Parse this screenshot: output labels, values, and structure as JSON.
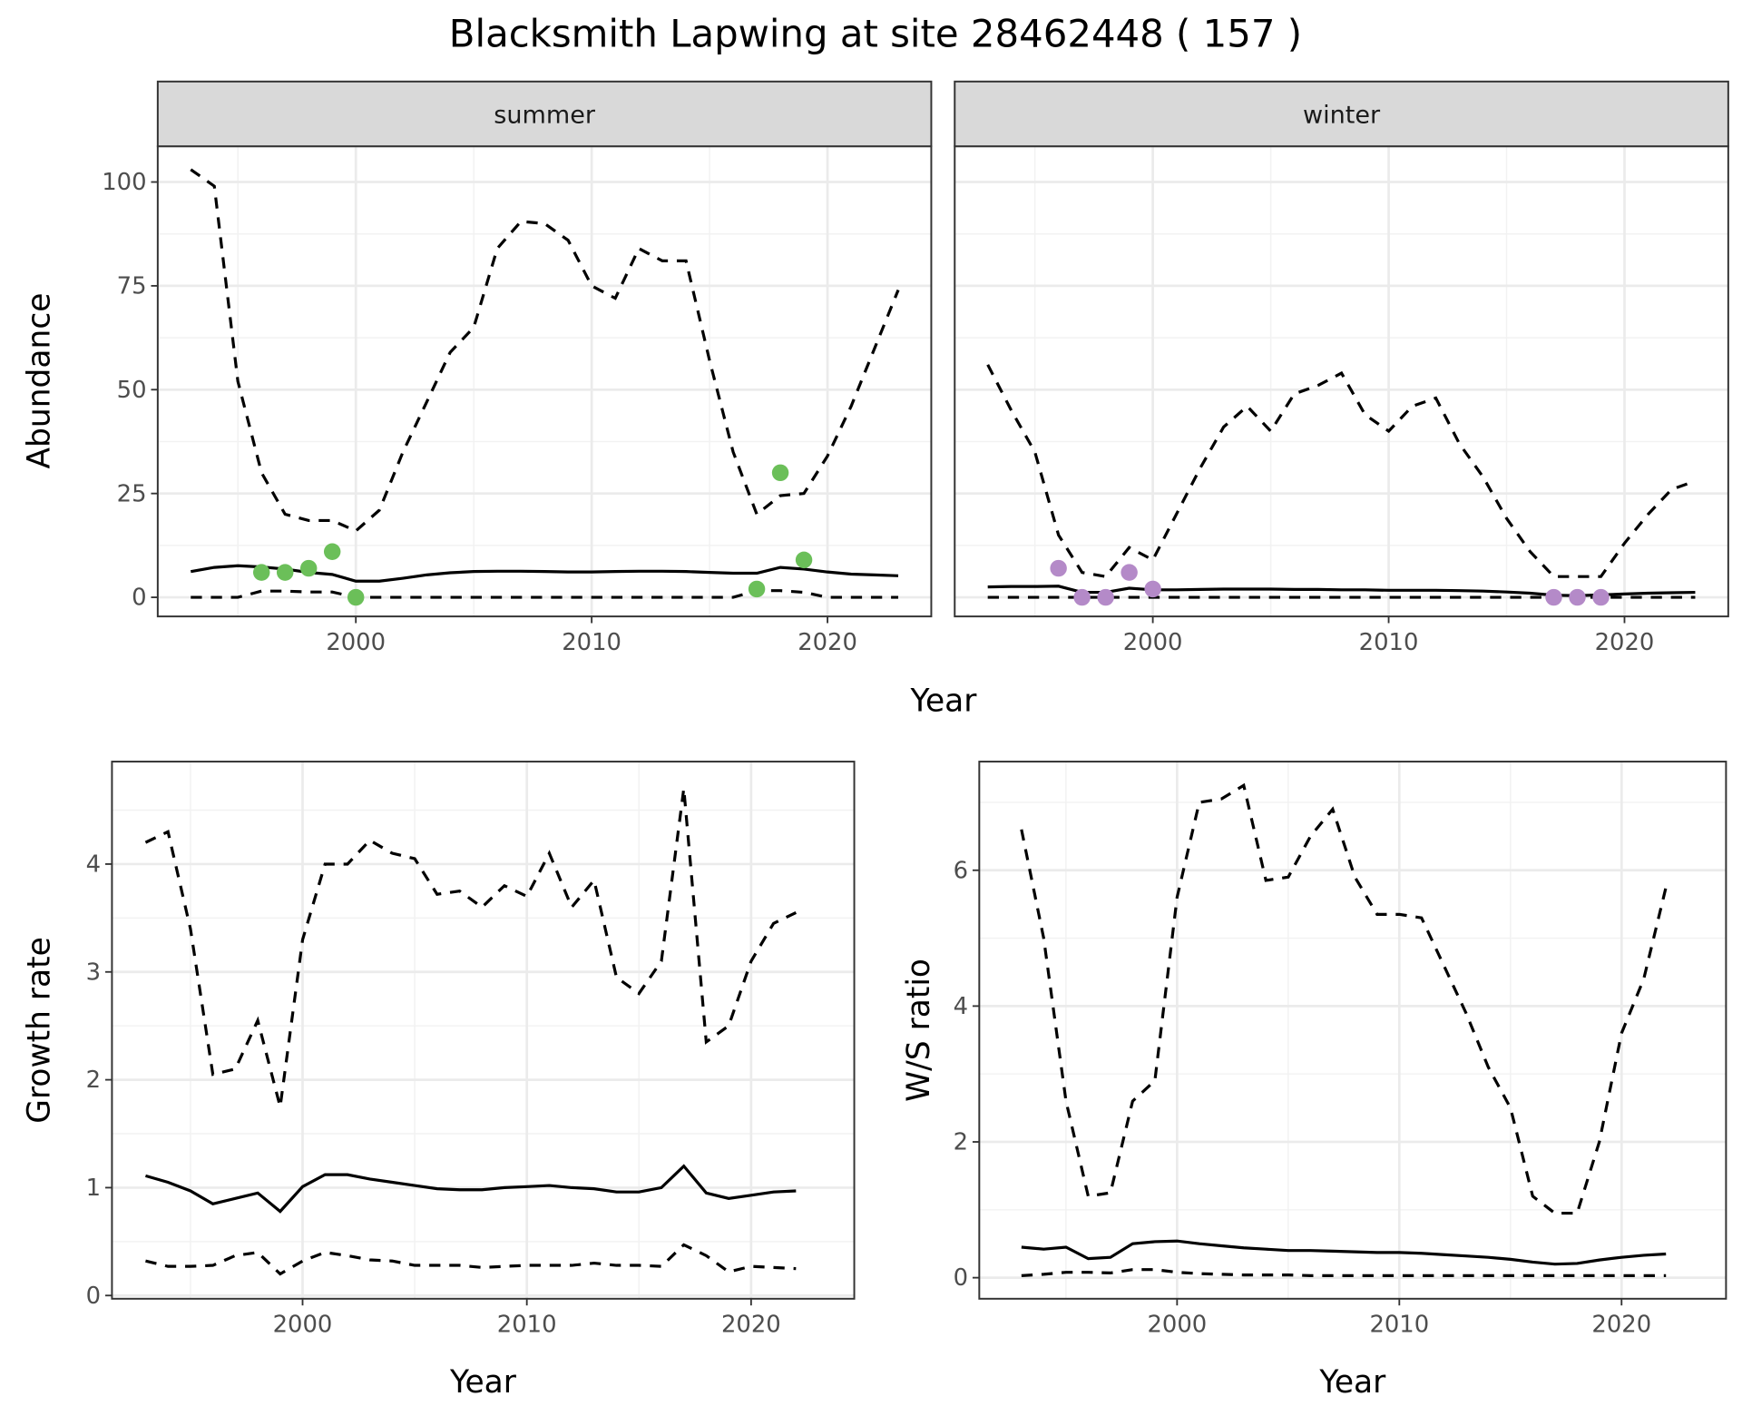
{
  "title": "Blacksmith Lapwing at site 28462448 ( 157 )",
  "chart_data": [
    {
      "type": "line",
      "facet": "summer",
      "xlabel": "Year",
      "ylabel": "Abundance",
      "xlim": [
        1991.6,
        2024.4
      ],
      "ylim": [
        -4.6,
        108.6
      ],
      "xticks": [
        2000,
        2010,
        2020
      ],
      "yticks": [
        0,
        25,
        50,
        75,
        100
      ],
      "x": [
        1993,
        1994,
        1995,
        1996,
        1997,
        1998,
        1999,
        2000,
        2001,
        2002,
        2003,
        2004,
        2005,
        2006,
        2007,
        2008,
        2009,
        2010,
        2011,
        2012,
        2013,
        2014,
        2015,
        2016,
        2017,
        2018,
        2019,
        2020,
        2021,
        2022,
        2023
      ],
      "series": [
        {
          "name": "upper",
          "style": "dashed",
          "values": [
            103,
            99,
            52,
            30,
            20,
            18.5,
            18.5,
            16,
            21,
            35,
            47,
            59,
            65,
            84,
            90.5,
            90,
            86,
            75,
            72,
            84,
            81,
            81,
            57,
            35,
            20,
            24.5,
            25,
            34,
            46,
            60,
            74
          ]
        },
        {
          "name": "estimate",
          "style": "solid",
          "values": [
            6.2,
            7.2,
            7.6,
            7.3,
            6.8,
            6,
            5.5,
            3.9,
            3.9,
            4.6,
            5.4,
            5.9,
            6.2,
            6.3,
            6.3,
            6.2,
            6.1,
            6.1,
            6.2,
            6.3,
            6.3,
            6.2,
            6,
            5.8,
            5.8,
            7.2,
            6.8,
            6.1,
            5.6,
            5.4,
            5.2
          ]
        },
        {
          "name": "lower",
          "style": "dashed",
          "values": [
            0,
            0,
            0,
            1.5,
            1.5,
            1.3,
            1.3,
            0,
            0,
            0,
            0,
            0,
            0,
            0,
            0,
            0,
            0,
            0,
            0,
            0,
            0,
            0,
            0,
            0,
            1.6,
            1.6,
            1.2,
            0,
            0,
            0,
            0
          ]
        }
      ],
      "points": {
        "color": "#6bbf59",
        "x": [
          1996,
          1997,
          1998,
          1999,
          2000,
          2017,
          2018,
          2019
        ],
        "y": [
          6,
          6,
          7,
          11,
          0,
          2,
          30,
          9
        ]
      }
    },
    {
      "type": "line",
      "facet": "winter",
      "xlabel": "Year",
      "ylabel": "Abundance",
      "xlim": [
        1991.6,
        2024.4
      ],
      "ylim": [
        -4.6,
        108.6
      ],
      "xticks": [
        2000,
        2010,
        2020
      ],
      "yticks": [
        0,
        25,
        50,
        75,
        100
      ],
      "x": [
        1993,
        1994,
        1995,
        1996,
        1997,
        1998,
        1999,
        2000,
        2001,
        2002,
        2003,
        2004,
        2005,
        2006,
        2007,
        2008,
        2009,
        2010,
        2011,
        2012,
        2013,
        2014,
        2015,
        2016,
        2017,
        2018,
        2019,
        2020,
        2021,
        2022,
        2023
      ],
      "series": [
        {
          "name": "upper",
          "style": "dashed",
          "values": [
            56,
            45,
            35,
            15,
            6,
            5,
            12,
            9,
            20,
            31,
            41,
            46,
            40,
            49,
            51,
            54,
            44,
            40,
            46,
            48,
            37,
            29,
            19,
            11,
            5,
            5,
            5,
            13,
            20,
            26,
            28
          ]
        },
        {
          "name": "estimate",
          "style": "solid",
          "values": [
            2.5,
            2.6,
            2.6,
            2.7,
            1.2,
            1.2,
            2.2,
            1.8,
            1.8,
            1.9,
            2,
            2,
            2,
            1.9,
            1.9,
            1.8,
            1.8,
            1.7,
            1.7,
            1.7,
            1.6,
            1.5,
            1.3,
            1,
            0.5,
            0.4,
            0.6,
            0.8,
            1,
            1.1,
            1.2
          ]
        },
        {
          "name": "lower",
          "style": "dashed",
          "values": [
            0,
            0,
            0,
            0,
            0,
            0,
            0,
            0,
            0,
            0,
            0,
            0,
            0,
            0,
            0,
            0,
            0,
            0,
            0,
            0,
            0,
            0,
            0,
            0,
            0,
            0,
            0,
            0,
            0,
            0,
            0
          ]
        }
      ],
      "points": {
        "color": "#b48ac8",
        "x": [
          1996,
          1997,
          1998,
          1999,
          2000,
          2017,
          2018,
          2019
        ],
        "y": [
          7,
          0,
          0,
          6,
          2,
          0,
          0,
          0
        ]
      }
    },
    {
      "type": "line",
      "xlabel": "Year",
      "ylabel": "Growth rate",
      "xlim": [
        1991.5,
        2024.6
      ],
      "ylim": [
        -0.03,
        4.95
      ],
      "xticks": [
        2000,
        2010,
        2020
      ],
      "yticks": [
        0,
        1,
        2,
        3,
        4
      ],
      "x": [
        1993,
        1994,
        1995,
        1996,
        1997,
        1998,
        1999,
        2000,
        2001,
        2002,
        2003,
        2004,
        2005,
        2006,
        2007,
        2008,
        2009,
        2010,
        2011,
        2012,
        2013,
        2014,
        2015,
        2016,
        2017,
        2018,
        2019,
        2020,
        2021,
        2022
      ],
      "series": [
        {
          "name": "upper",
          "style": "dashed",
          "values": [
            4.2,
            4.3,
            3.4,
            2.05,
            2.1,
            2.55,
            1.75,
            3.3,
            4.0,
            4.0,
            4.22,
            4.1,
            4.05,
            3.72,
            3.75,
            3.6,
            3.8,
            3.7,
            4.1,
            3.6,
            3.85,
            2.95,
            2.8,
            3.1,
            4.7,
            2.35,
            2.5,
            3.1,
            3.45,
            3.55
          ]
        },
        {
          "name": "estimate",
          "style": "solid",
          "values": [
            1.11,
            1.05,
            0.97,
            0.85,
            0.9,
            0.95,
            0.78,
            1.01,
            1.12,
            1.12,
            1.08,
            1.05,
            1.02,
            0.99,
            0.98,
            0.98,
            1.0,
            1.01,
            1.02,
            1.0,
            0.99,
            0.96,
            0.96,
            1.0,
            1.2,
            0.95,
            0.9,
            0.93,
            0.96,
            0.97
          ]
        },
        {
          "name": "lower",
          "style": "dashed",
          "values": [
            0.32,
            0.27,
            0.27,
            0.28,
            0.37,
            0.4,
            0.2,
            0.32,
            0.4,
            0.37,
            0.33,
            0.32,
            0.28,
            0.28,
            0.28,
            0.26,
            0.27,
            0.28,
            0.28,
            0.28,
            0.3,
            0.28,
            0.28,
            0.27,
            0.47,
            0.37,
            0.22,
            0.27,
            0.26,
            0.25
          ]
        }
      ]
    },
    {
      "type": "line",
      "xlabel": "Year",
      "ylabel": "W/S ratio",
      "xlim": [
        1991.1,
        2024.7
      ],
      "ylim": [
        -0.31,
        7.6
      ],
      "xticks": [
        2000,
        2010,
        2020
      ],
      "yticks": [
        0,
        2,
        4,
        6
      ],
      "x": [
        1993,
        1994,
        1995,
        1996,
        1997,
        1998,
        1999,
        2000,
        2001,
        2002,
        2003,
        2004,
        2005,
        2006,
        2007,
        2008,
        2009,
        2010,
        2011,
        2012,
        2013,
        2014,
        2015,
        2016,
        2017,
        2018,
        2019,
        2020,
        2021,
        2022
      ],
      "series": [
        {
          "name": "upper",
          "style": "dashed",
          "values": [
            6.6,
            5,
            2.6,
            1.2,
            1.25,
            2.6,
            2.9,
            5.6,
            7.0,
            7.05,
            7.25,
            5.85,
            5.9,
            6.5,
            6.9,
            5.9,
            5.35,
            5.35,
            5.3,
            4.6,
            3.9,
            3.1,
            2.5,
            1.2,
            0.95,
            0.95,
            2.0,
            3.6,
            4.4,
            5.75
          ]
        },
        {
          "name": "estimate",
          "style": "solid",
          "values": [
            0.45,
            0.42,
            0.45,
            0.28,
            0.3,
            0.5,
            0.53,
            0.54,
            0.5,
            0.47,
            0.44,
            0.42,
            0.4,
            0.4,
            0.39,
            0.38,
            0.37,
            0.37,
            0.36,
            0.34,
            0.32,
            0.3,
            0.27,
            0.23,
            0.2,
            0.21,
            0.26,
            0.3,
            0.33,
            0.35
          ]
        },
        {
          "name": "lower",
          "style": "dashed",
          "values": [
            0.03,
            0.05,
            0.08,
            0.08,
            0.07,
            0.12,
            0.12,
            0.08,
            0.06,
            0.05,
            0.04,
            0.04,
            0.04,
            0.03,
            0.03,
            0.03,
            0.03,
            0.03,
            0.03,
            0.03,
            0.03,
            0.03,
            0.03,
            0.03,
            0.03,
            0.03,
            0.03,
            0.03,
            0.03,
            0.03
          ]
        }
      ]
    }
  ]
}
